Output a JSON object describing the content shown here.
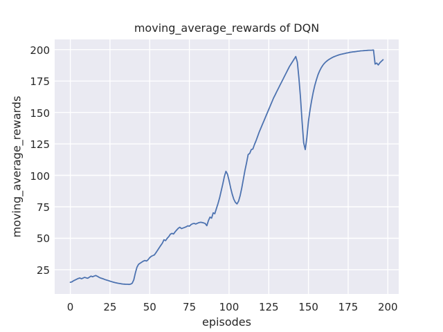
{
  "chart_data": {
    "type": "line",
    "title": "moving_average_rewards of DQN",
    "xlabel": "episodes",
    "ylabel": "moving_average_rewards",
    "x_ticks": [
      0,
      25,
      50,
      75,
      100,
      125,
      150,
      175,
      200
    ],
    "y_ticks": [
      25,
      50,
      75,
      100,
      125,
      150,
      175,
      200
    ],
    "xlim": [
      -9.85,
      206.85
    ],
    "ylim": [
      5.7,
      208.1
    ],
    "grid": true,
    "legend": "none",
    "style": {
      "figure_background": "#ffffff",
      "axes_background": "#eaeaf2",
      "grid_color": "#ffffff",
      "line_color": "#4c72b0",
      "line_width": 1.8,
      "text_color": "#262626"
    },
    "series": [
      {
        "name": "moving_average_rewards",
        "points": [
          [
            0,
            15.0
          ],
          [
            1,
            15.3
          ],
          [
            2,
            16.2
          ],
          [
            3,
            16.8
          ],
          [
            4,
            17.4
          ],
          [
            5,
            18.0
          ],
          [
            6,
            18.4
          ],
          [
            7,
            17.8
          ],
          [
            8,
            18.3
          ],
          [
            9,
            18.9
          ],
          [
            10,
            18.5
          ],
          [
            11,
            18.2
          ],
          [
            12,
            19.0
          ],
          [
            13,
            19.9
          ],
          [
            14,
            19.4
          ],
          [
            15,
            19.9
          ],
          [
            16,
            20.4
          ],
          [
            17,
            19.8
          ],
          [
            18,
            19.0
          ],
          [
            19,
            18.4
          ],
          [
            20,
            18.0
          ],
          [
            21,
            17.6
          ],
          [
            22,
            17.1
          ],
          [
            23,
            16.7
          ],
          [
            24,
            16.3
          ],
          [
            25,
            15.9
          ],
          [
            26,
            15.5
          ],
          [
            27,
            15.1
          ],
          [
            28,
            14.8
          ],
          [
            29,
            14.5
          ],
          [
            30,
            14.2
          ],
          [
            31,
            14.0
          ],
          [
            32,
            13.8
          ],
          [
            33,
            13.6
          ],
          [
            34,
            13.5
          ],
          [
            35,
            13.4
          ],
          [
            36,
            13.4
          ],
          [
            37,
            13.3
          ],
          [
            38,
            13.5
          ],
          [
            39,
            14.2
          ],
          [
            40,
            17.0
          ],
          [
            41,
            22.5
          ],
          [
            42,
            27.0
          ],
          [
            43,
            29.3
          ],
          [
            44,
            30.2
          ],
          [
            45,
            31.0
          ],
          [
            46,
            31.8
          ],
          [
            47,
            32.3
          ],
          [
            48,
            31.9
          ],
          [
            49,
            33.0
          ],
          [
            50,
            34.6
          ],
          [
            51,
            35.6
          ],
          [
            52,
            36.2
          ],
          [
            53,
            36.8
          ],
          [
            54,
            38.6
          ],
          [
            55,
            40.5
          ],
          [
            56,
            42.4
          ],
          [
            57,
            44.3
          ],
          [
            58,
            46.1
          ],
          [
            59,
            48.8
          ],
          [
            60,
            48.1
          ],
          [
            61,
            49.9
          ],
          [
            62,
            51.3
          ],
          [
            63,
            53.2
          ],
          [
            64,
            53.9
          ],
          [
            65,
            53.4
          ],
          [
            66,
            55.1
          ],
          [
            67,
            56.6
          ],
          [
            68,
            57.9
          ],
          [
            69,
            58.8
          ],
          [
            70,
            57.7
          ],
          [
            71,
            58.1
          ],
          [
            72,
            58.6
          ],
          [
            73,
            59.1
          ],
          [
            74,
            59.9
          ],
          [
            75,
            59.6
          ],
          [
            76,
            60.8
          ],
          [
            77,
            61.5
          ],
          [
            78,
            61.8
          ],
          [
            79,
            61.3
          ],
          [
            80,
            61.9
          ],
          [
            81,
            62.4
          ],
          [
            82,
            62.7
          ],
          [
            83,
            62.5
          ],
          [
            84,
            62.2
          ],
          [
            85,
            61.7
          ],
          [
            86,
            60.0
          ],
          [
            87,
            64.0
          ],
          [
            88,
            66.8
          ],
          [
            89,
            66.0
          ],
          [
            90,
            70.2
          ],
          [
            91,
            69.5
          ],
          [
            92,
            73.5
          ],
          [
            93,
            77.5
          ],
          [
            94,
            82.0
          ],
          [
            95,
            87.5
          ],
          [
            96,
            93.0
          ],
          [
            97,
            99.0
          ],
          [
            98,
            103.2
          ],
          [
            99,
            101.0
          ],
          [
            100,
            96.0
          ],
          [
            101,
            90.0
          ],
          [
            102,
            85.0
          ],
          [
            103,
            81.0
          ],
          [
            104,
            78.5
          ],
          [
            105,
            77.3
          ],
          [
            106,
            79.5
          ],
          [
            107,
            84.0
          ],
          [
            108,
            90.0
          ],
          [
            109,
            97.0
          ],
          [
            110,
            104.0
          ],
          [
            111,
            110.0
          ],
          [
            112,
            116.5
          ],
          [
            113,
            117.5
          ],
          [
            114,
            120.5
          ],
          [
            115,
            121.0
          ],
          [
            116,
            124.5
          ],
          [
            117,
            127.5
          ],
          [
            118,
            131.0
          ],
          [
            119,
            134.5
          ],
          [
            120,
            137.5
          ],
          [
            121,
            140.5
          ],
          [
            122,
            143.5
          ],
          [
            123,
            146.5
          ],
          [
            124,
            149.5
          ],
          [
            125,
            152.5
          ],
          [
            126,
            155.5
          ],
          [
            127,
            158.5
          ],
          [
            128,
            161.5
          ],
          [
            129,
            164.0
          ],
          [
            130,
            166.5
          ],
          [
            131,
            169.0
          ],
          [
            132,
            171.5
          ],
          [
            133,
            174.0
          ],
          [
            134,
            176.5
          ],
          [
            135,
            179.0
          ],
          [
            136,
            181.5
          ],
          [
            137,
            184.0
          ],
          [
            138,
            186.5
          ],
          [
            139,
            188.5
          ],
          [
            140,
            190.5
          ],
          [
            141,
            192.5
          ],
          [
            142,
            194.5
          ],
          [
            143,
            190.0
          ],
          [
            144,
            177.0
          ],
          [
            145,
            162.0
          ],
          [
            146,
            143.0
          ],
          [
            147,
            126.0
          ],
          [
            148,
            120.5
          ],
          [
            149,
            130.0
          ],
          [
            150,
            143.0
          ],
          [
            151,
            152.0
          ],
          [
            152,
            159.5
          ],
          [
            153,
            166.0
          ],
          [
            154,
            171.5
          ],
          [
            155,
            176.0
          ],
          [
            156,
            180.0
          ],
          [
            157,
            183.0
          ],
          [
            158,
            185.5
          ],
          [
            159,
            187.5
          ],
          [
            160,
            189.0
          ],
          [
            161,
            190.3
          ],
          [
            162,
            191.3
          ],
          [
            163,
            192.2
          ],
          [
            164,
            193.0
          ],
          [
            165,
            193.7
          ],
          [
            166,
            194.3
          ],
          [
            167,
            194.8
          ],
          [
            168,
            195.3
          ],
          [
            169,
            195.7
          ],
          [
            170,
            196.1
          ],
          [
            171,
            196.4
          ],
          [
            172,
            196.7
          ],
          [
            173,
            197.0
          ],
          [
            174,
            197.3
          ],
          [
            175,
            197.5
          ],
          [
            176,
            197.8
          ],
          [
            177,
            198.0
          ],
          [
            178,
            198.2
          ],
          [
            179,
            198.3
          ],
          [
            180,
            198.5
          ],
          [
            181,
            198.7
          ],
          [
            182,
            198.8
          ],
          [
            183,
            199.0
          ],
          [
            184,
            199.1
          ],
          [
            185,
            199.2
          ],
          [
            186,
            199.3
          ],
          [
            187,
            199.4
          ],
          [
            188,
            199.5
          ],
          [
            189,
            199.5
          ],
          [
            190,
            199.6
          ],
          [
            191,
            199.7
          ],
          [
            192,
            188.5
          ],
          [
            193,
            189.3
          ],
          [
            194,
            187.8
          ],
          [
            195,
            189.5
          ],
          [
            196,
            190.8
          ],
          [
            197,
            192.0
          ]
        ]
      }
    ]
  }
}
